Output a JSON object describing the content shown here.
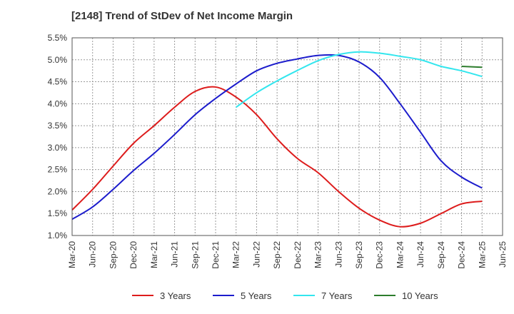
{
  "chart_data": {
    "type": "line",
    "title": "[2148]  Trend of StDev of Net Income Margin",
    "xlabel": "",
    "ylabel": "",
    "x_ticks": [
      "Mar-20",
      "Jun-20",
      "Sep-20",
      "Dec-20",
      "Mar-21",
      "Jun-21",
      "Sep-21",
      "Dec-21",
      "Mar-22",
      "Jun-22",
      "Sep-22",
      "Dec-22",
      "Mar-23",
      "Jun-23",
      "Sep-23",
      "Dec-23",
      "Mar-24",
      "Jun-24",
      "Sep-24",
      "Dec-24",
      "Mar-25",
      "Jun-25"
    ],
    "y_ticks": [
      "1.0%",
      "1.5%",
      "2.0%",
      "2.5%",
      "3.0%",
      "3.5%",
      "4.0%",
      "4.5%",
      "5.0%",
      "5.5%"
    ],
    "ylim": [
      1.0,
      5.5
    ],
    "grid": true,
    "legend_position": "bottom",
    "series": [
      {
        "name": "3 Years",
        "color": "#dd1c1c",
        "x": [
          "Mar-20",
          "Jun-20",
          "Sep-20",
          "Dec-20",
          "Mar-21",
          "Jun-21",
          "Sep-21",
          "Dec-21",
          "Mar-22",
          "Jun-22",
          "Sep-22",
          "Dec-22",
          "Mar-23",
          "Jun-23",
          "Sep-23",
          "Dec-23",
          "Mar-24",
          "Jun-24",
          "Sep-24",
          "Dec-24",
          "Mar-25"
        ],
        "values": [
          1.58,
          2.05,
          2.58,
          3.1,
          3.5,
          3.92,
          4.28,
          4.38,
          4.15,
          3.75,
          3.2,
          2.75,
          2.43,
          2.0,
          1.62,
          1.35,
          1.2,
          1.28,
          1.5,
          1.72,
          1.78
        ]
      },
      {
        "name": "5 Years",
        "color": "#1c1ccc",
        "x": [
          "Mar-20",
          "Jun-20",
          "Sep-20",
          "Dec-20",
          "Mar-21",
          "Jun-21",
          "Sep-21",
          "Dec-21",
          "Mar-22",
          "Jun-22",
          "Sep-22",
          "Dec-22",
          "Mar-23",
          "Jun-23",
          "Sep-23",
          "Dec-23",
          "Mar-24",
          "Jun-24",
          "Sep-24",
          "Dec-24",
          "Mar-25"
        ],
        "values": [
          1.37,
          1.65,
          2.05,
          2.48,
          2.87,
          3.3,
          3.75,
          4.12,
          4.45,
          4.75,
          4.92,
          5.02,
          5.1,
          5.1,
          4.95,
          4.6,
          4.0,
          3.35,
          2.7,
          2.33,
          2.08
        ]
      },
      {
        "name": "7 Years",
        "color": "#33e6ee",
        "x": [
          "Mar-22",
          "Jun-22",
          "Sep-22",
          "Dec-22",
          "Mar-23",
          "Jun-23",
          "Sep-23",
          "Dec-23",
          "Mar-24",
          "Jun-24",
          "Sep-24",
          "Dec-24",
          "Mar-25"
        ],
        "values": [
          3.92,
          4.25,
          4.52,
          4.76,
          4.98,
          5.12,
          5.18,
          5.15,
          5.08,
          5.0,
          4.85,
          4.75,
          4.62
        ]
      },
      {
        "name": "10 Years",
        "color": "#2d7d2d",
        "x": [
          "Dec-24",
          "Mar-25"
        ],
        "values": [
          4.85,
          4.83
        ]
      }
    ]
  }
}
